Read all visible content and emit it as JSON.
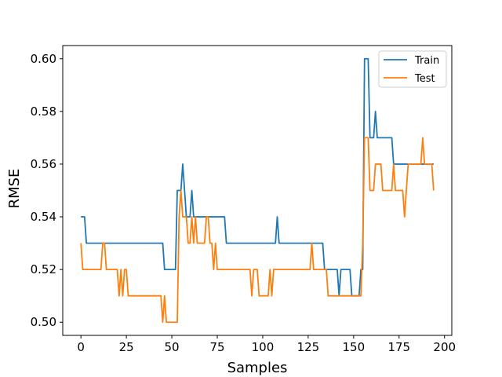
{
  "chart_data": {
    "type": "line",
    "xlabel": "Samples",
    "ylabel": "RMSE",
    "xlim": [
      -10,
      204
    ],
    "ylim": [
      0.495,
      0.605
    ],
    "xticks": [
      0,
      25,
      50,
      75,
      100,
      125,
      150,
      175,
      200
    ],
    "yticks": [
      0.5,
      0.52,
      0.54,
      0.56,
      0.58,
      0.6
    ],
    "ytick_labels": [
      "0.50",
      "0.52",
      "0.54",
      "0.56",
      "0.58",
      "0.60"
    ],
    "xtick_labels": [
      "0",
      "25",
      "50",
      "75",
      "100",
      "125",
      "150",
      "175",
      "200"
    ],
    "legend_position": "top-right",
    "grid": false,
    "series": [
      {
        "name": "Train",
        "color": "#1f77b4",
        "points": [
          [
            0,
            0.54
          ],
          [
            2,
            0.54
          ],
          [
            3,
            0.53
          ],
          [
            45,
            0.53
          ],
          [
            46,
            0.52
          ],
          [
            52,
            0.52
          ],
          [
            53,
            0.55
          ],
          [
            55,
            0.55
          ],
          [
            56,
            0.56
          ],
          [
            57,
            0.55
          ],
          [
            58,
            0.54
          ],
          [
            60,
            0.54
          ],
          [
            61,
            0.55
          ],
          [
            62,
            0.54
          ],
          [
            79,
            0.54
          ],
          [
            80,
            0.53
          ],
          [
            107,
            0.53
          ],
          [
            108,
            0.54
          ],
          [
            109,
            0.53
          ],
          [
            133,
            0.53
          ],
          [
            134,
            0.52
          ],
          [
            141,
            0.52
          ],
          [
            142,
            0.51
          ],
          [
            143,
            0.52
          ],
          [
            148,
            0.52
          ],
          [
            149,
            0.51
          ],
          [
            153,
            0.51
          ],
          [
            154,
            0.52
          ],
          [
            155,
            0.52
          ],
          [
            156,
            0.6
          ],
          [
            158,
            0.6
          ],
          [
            159,
            0.57
          ],
          [
            161,
            0.57
          ],
          [
            162,
            0.58
          ],
          [
            163,
            0.57
          ],
          [
            171,
            0.57
          ],
          [
            172,
            0.56
          ],
          [
            194,
            0.56
          ]
        ]
      },
      {
        "name": "Test",
        "color": "#ff7f0e",
        "points": [
          [
            0,
            0.53
          ],
          [
            1,
            0.52
          ],
          [
            11,
            0.52
          ],
          [
            12,
            0.53
          ],
          [
            13,
            0.53
          ],
          [
            14,
            0.52
          ],
          [
            20,
            0.52
          ],
          [
            21,
            0.51
          ],
          [
            22,
            0.52
          ],
          [
            23,
            0.51
          ],
          [
            24,
            0.52
          ],
          [
            25,
            0.52
          ],
          [
            26,
            0.51
          ],
          [
            44,
            0.51
          ],
          [
            45,
            0.5
          ],
          [
            46,
            0.51
          ],
          [
            47,
            0.5
          ],
          [
            53,
            0.5
          ],
          [
            54,
            0.54
          ],
          [
            55,
            0.55
          ],
          [
            56,
            0.54
          ],
          [
            58,
            0.54
          ],
          [
            59,
            0.53
          ],
          [
            60,
            0.53
          ],
          [
            61,
            0.54
          ],
          [
            62,
            0.53
          ],
          [
            63,
            0.54
          ],
          [
            64,
            0.53
          ],
          [
            68,
            0.53
          ],
          [
            69,
            0.54
          ],
          [
            70,
            0.54
          ],
          [
            71,
            0.53
          ],
          [
            72,
            0.53
          ],
          [
            73,
            0.52
          ],
          [
            74,
            0.53
          ],
          [
            75,
            0.52
          ],
          [
            93,
            0.52
          ],
          [
            94,
            0.51
          ],
          [
            95,
            0.52
          ],
          [
            97,
            0.52
          ],
          [
            98,
            0.51
          ],
          [
            103,
            0.51
          ],
          [
            104,
            0.52
          ],
          [
            105,
            0.51
          ],
          [
            106,
            0.52
          ],
          [
            126,
            0.52
          ],
          [
            127,
            0.53
          ],
          [
            128,
            0.52
          ],
          [
            135,
            0.52
          ],
          [
            136,
            0.51
          ],
          [
            154,
            0.51
          ],
          [
            155,
            0.53
          ],
          [
            156,
            0.57
          ],
          [
            158,
            0.57
          ],
          [
            159,
            0.55
          ],
          [
            161,
            0.55
          ],
          [
            162,
            0.56
          ],
          [
            165,
            0.56
          ],
          [
            166,
            0.55
          ],
          [
            171,
            0.55
          ],
          [
            172,
            0.56
          ],
          [
            173,
            0.55
          ],
          [
            177,
            0.55
          ],
          [
            178,
            0.54
          ],
          [
            180,
            0.56
          ],
          [
            187,
            0.56
          ],
          [
            188,
            0.57
          ],
          [
            189,
            0.56
          ],
          [
            193,
            0.56
          ],
          [
            194,
            0.55
          ]
        ]
      }
    ]
  }
}
